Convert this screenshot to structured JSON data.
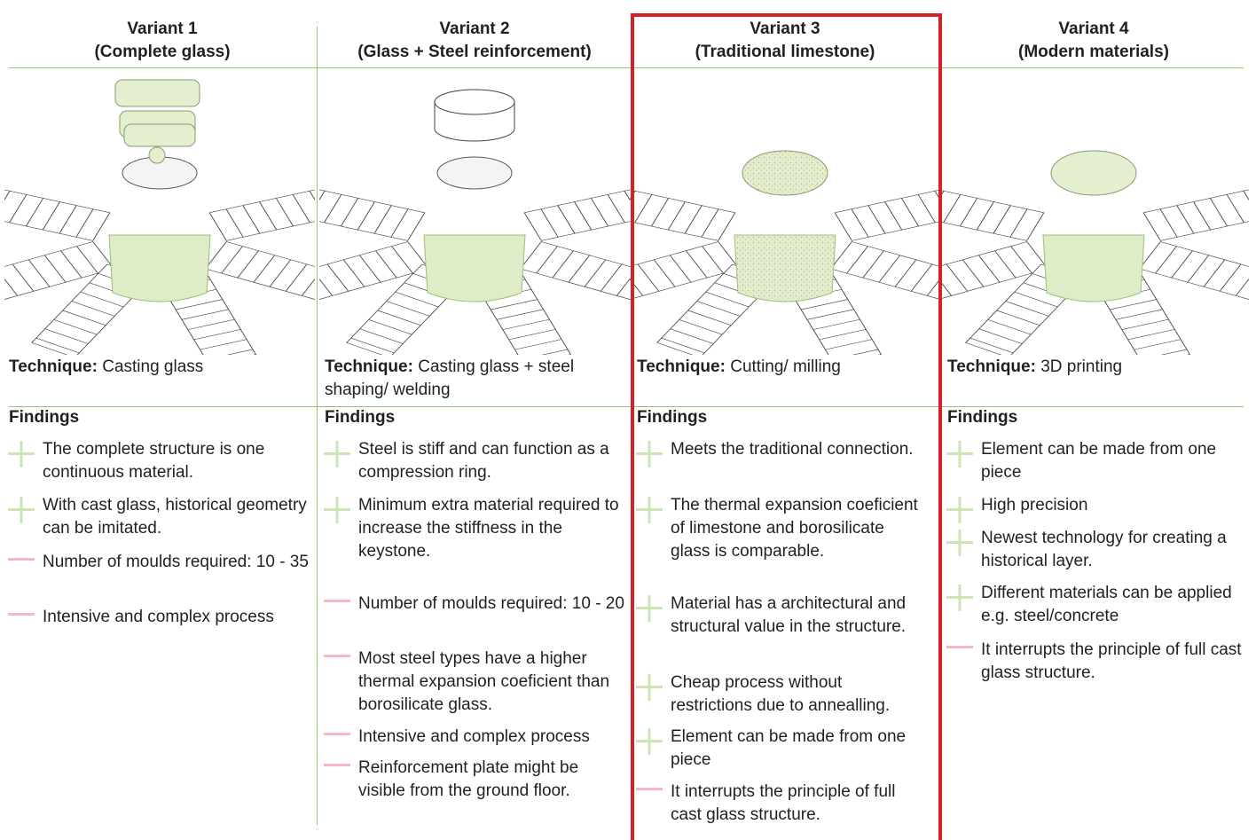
{
  "columns": [
    {
      "title": "Variant 1",
      "subtitle": "(Complete glass)",
      "technique_label": "Technique:",
      "technique": "Casting glass",
      "findings_title": "Findings",
      "findings": [
        "The complete structure is one continuous material.",
        "With cast glass, historical geometry can be imitated.",
        "Number of moulds required: 10 - 35",
        "Intensive and complex process"
      ]
    },
    {
      "title": "Variant 2",
      "subtitle": "(Glass + Steel reinforcement)",
      "technique_label": "Technique:",
      "technique": "Casting glass + steel shaping/ welding",
      "findings_title": "Findings",
      "findings": [
        "Steel is stiff and can function as a compression ring.",
        "Minimum extra material required to increase the stiffness in the keystone.",
        "Number of moulds required: 10 - 20",
        "Most steel types have a higher thermal expansion coeficient than borosilicate glass.",
        "Intensive and complex process",
        "Reinforcement plate might be visible from the ground floor."
      ]
    },
    {
      "title": "Variant 3",
      "subtitle": "(Traditional limestone)",
      "technique_label": "Technique:",
      "technique": "Cutting/ milling",
      "findings_title": "Findings",
      "findings": [
        "Meets the traditional connection.",
        "The thermal expansion coeficient of limestone and borosilicate glass is comparable.",
        "Material has a architectural and structural value in the structure.",
        "Cheap process without restrictions due to annealling.",
        "Element can be made from one piece",
        "It interrupts the principle of full cast glass structure."
      ]
    },
    {
      "title": "Variant 4",
      "subtitle": "(Modern materials)",
      "technique_label": "Technique:",
      "technique": "3D printing",
      "findings_title": "Findings",
      "findings": [
        "Element can be made from one piece",
        "High precision",
        "Newest technology for creating a historical layer.",
        "Different materials can be applied e.g. steel/concrete",
        "It interrupts the principle of full cast glass structure."
      ]
    }
  ]
}
